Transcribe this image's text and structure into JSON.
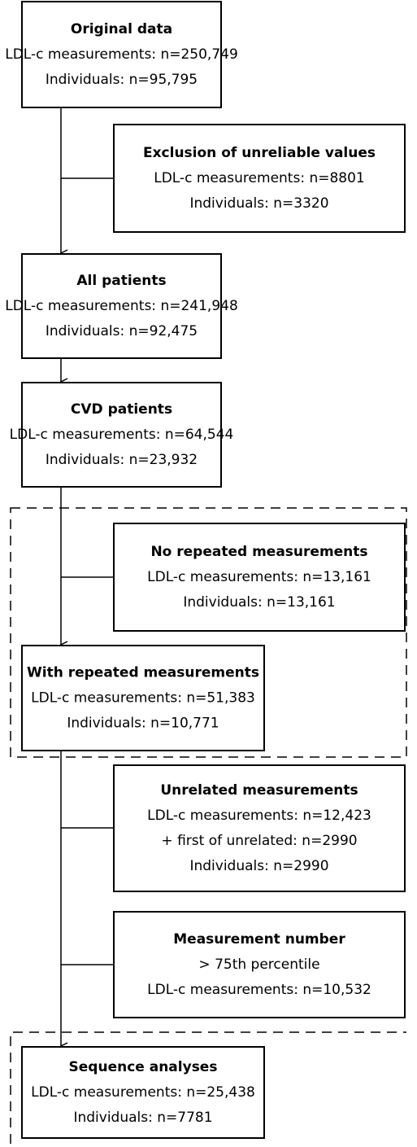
{
  "nodes": [
    {
      "title": "Original data",
      "lines": [
        "LDL-c measurements: n=250,749",
        "Individuals: n=95,795"
      ]
    },
    {
      "title": "Exclusion of unreliable values",
      "lines": [
        "LDL-c measurements: n=8801",
        "Individuals: n=3320"
      ]
    },
    {
      "title": "All patients",
      "lines": [
        "LDL-c measurements: n=241,948",
        "Individuals: n=92,475"
      ]
    },
    {
      "title": "CVD patients",
      "lines": [
        "LDL-c measurements: n=64,544",
        "Individuals: n=23,932"
      ]
    },
    {
      "title": "No repeated measurements",
      "lines": [
        "LDL-c measurements: n=13,161",
        "Individuals: n=13,161"
      ]
    },
    {
      "title": "With repeated measurements",
      "lines": [
        "LDL-c measurements: n=51,383",
        "Individuals: n=10,771"
      ]
    },
    {
      "title": "Unrelated measurements",
      "lines": [
        "LDL-c measurements: n=12,423",
        "+ first of unrelated: n=2990",
        "Individuals: n=2990"
      ]
    },
    {
      "title": "Measurement number",
      "lines": [
        "> 75th percentile",
        "LDL-c measurements: n=10,532"
      ]
    },
    {
      "title": "Sequence analyses",
      "lines": [
        "LDL-c measurements: n=25,438",
        "Individuals: n=7781"
      ]
    }
  ]
}
